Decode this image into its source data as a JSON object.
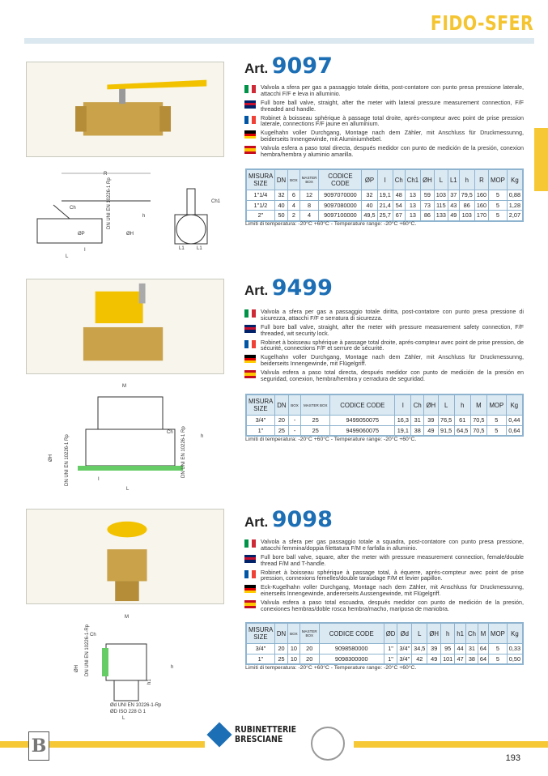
{
  "brand": "FIDO-SFER",
  "page_number": "193",
  "colors": {
    "yellow": "#f6c835",
    "blue": "#1d6fb5",
    "table_header": "#dbe9f3"
  },
  "flags": [
    "italy",
    "uk",
    "france",
    "germany",
    "spain"
  ],
  "footer": {
    "logo1": "B GROUP",
    "logo2_line1": "RUBINETTERIE",
    "logo2_line2": "BRESCIANE",
    "cert": "ISO 9001 · ISO 14001"
  },
  "sections": [
    {
      "art_prefix": "Art.",
      "art_number": "9097",
      "descriptions": [
        "Valvola a sfera per gas a passaggio totale diritta, post-contatore con punto presa pressione laterale, attacchi F/F e leva in alluminio.",
        "Full bore ball valve, straight, after the meter with lateral pressure measurement connection, F/F threaded and handle.",
        "Robinet à boisseau sphérique à passage total droite, aprés-compteur avec point de  prise pression laterale, connections F/F jaune en alluminium.",
        "Kugelhahn voller Durchgang, Montage nach dem Zähler, mit Anschluss für Druckmessunng, beiderseits Innengewinde, mit Aluminiumhebel.",
        "Valvula esfera a paso total directa, después medidor con punto de medición de la presión, conexion hembra/hembra y aluminio amarilla."
      ],
      "table": {
        "headers": [
          "MISURA SIZE",
          "DN",
          "BOX",
          "MASTER BOX",
          "CODICE CODE",
          "ØP",
          "I",
          "Ch",
          "Ch1",
          "ØH",
          "L",
          "L1",
          "h",
          "R",
          "MOP",
          "Kg"
        ],
        "rows": [
          [
            "1\"1/4",
            "32",
            "6",
            "12",
            "9097070000",
            "32",
            "19,1",
            "48",
            "13",
            "59",
            "103",
            "37",
            "79,5",
            "160",
            "5",
            "0,88"
          ],
          [
            "1\"1/2",
            "40",
            "4",
            "8",
            "9097080000",
            "40",
            "21,4",
            "54",
            "13",
            "73",
            "115",
            "43",
            "86",
            "160",
            "5",
            "1,28"
          ],
          [
            "2\"",
            "50",
            "2",
            "4",
            "9097100000",
            "49,5",
            "25,7",
            "67",
            "13",
            "86",
            "133",
            "49",
            "103",
            "170",
            "5",
            "2,07"
          ]
        ]
      },
      "temperature": "Limiti di temperatura: -20°C +60°C - Temperature range: -20°C +60°C.",
      "drawing_labels": [
        "R",
        "Ch",
        "h",
        "ØP",
        "ØH",
        "L",
        "I",
        "DN UNI EN 10226-1 Rp",
        "Ch1",
        "L1",
        "L1"
      ]
    },
    {
      "art_prefix": "Art.",
      "art_number": "9499",
      "descriptions": [
        "Valvola a sfera per gas a passaggio totale diritta, post-contatore con punto presa pressione di sicurezza, attacchi F/F e serratura di sicurezza.",
        "Full bore ball valve, straight, after the meter with pressure measurement safety connection, F/F threaded, wit security lock.",
        "Robinet à boisseau sphérique à passage total droite, aprés-compteur avec point de  prise pression, de sécurité, connections F/F et serrure de sécurité.",
        "Kugelhahn voller Durchgang, Montage nach dem Zähler, mit Anschluss für Druckmessunng, beiderseits Innengewinde, mit Flügelgriff.",
        "Valvula esfera a paso total directa, después medidor con punto de medición de la presión en seguridad, conexion, hembra/hembra y cerradura de seguridad."
      ],
      "table": {
        "headers": [
          "MISURA SIZE",
          "DN",
          "BOX",
          "MASTER BOX",
          "CODICE CODE",
          "I",
          "Ch",
          "ØH",
          "L",
          "h",
          "M",
          "MOP",
          "Kg"
        ],
        "rows": [
          [
            "3/4\"",
            "20",
            "-",
            "25",
            "9499050075",
            "16,3",
            "31",
            "39",
            "76,5",
            "61",
            "70,5",
            "5",
            "0,44"
          ],
          [
            "1\"",
            "25",
            "-",
            "25",
            "9499060075",
            "19,1",
            "38",
            "49",
            "91,5",
            "64,5",
            "70,5",
            "5",
            "0,64"
          ]
        ]
      },
      "temperature": "Limiti di temperatura: -20°C +60°C - Temperature range: -20°C +60°C.",
      "drawing_labels": [
        "M",
        "Ch",
        "h",
        "ØH",
        "DN UNI EN 10226-1 Rp",
        "I",
        "L",
        "DN UNI EN 10226-1 Rp"
      ]
    },
    {
      "art_prefix": "Art.",
      "art_number": "9098",
      "descriptions": [
        "Valvola a sfera per gas passaggio totale a squadra, post-contatore con punto presa pressione, attacchi femmina/doppia filettatura F/M e farfalla in alluminio.",
        "Full bore ball valve, square, after the meter with pressure measurement connection, female/double thread F/M and T-handle.",
        "Robinet à boisseau sphérique à passage total, à équerre, aprés-compteur avec point de prise pression, connexions femelles/double taraudage F/M et levier papillon.",
        "Eck-Kugelhahn voller Durchgang, Montage nach dem Zähler, mit Anschluss für  Druckmessunng, einerseits Innengewinde, andererseits Aussengewinde, mit Flügelgriff.",
        "Valvula esfera a paso total escuadra, después medidor con punto de medición de la presión, conexiones hembras/doble rosca hembra/macho, mariposa de maniobra."
      ],
      "table": {
        "headers": [
          "MISURA SIZE",
          "DN",
          "BOX",
          "MASTER BOX",
          "CODICE CODE",
          "ØD",
          "Ød",
          "L",
          "ØH",
          "h",
          "h1",
          "Ch",
          "M",
          "MOP",
          "Kg"
        ],
        "rows": [
          [
            "3/4\"",
            "20",
            "10",
            "20",
            "9098580000",
            "1\"",
            "3/4\"",
            "34,5",
            "39",
            "95",
            "44",
            "31",
            "64",
            "5",
            "0,33"
          ],
          [
            "1\"",
            "25",
            "10",
            "20",
            "9098300000",
            "1\"",
            "3/4\"",
            "42",
            "49",
            "101",
            "47",
            "38",
            "64",
            "5",
            "0,50"
          ]
        ]
      },
      "temperature": "Limiti di temperatura: -20°C +60°C - Temperature range: -20°C +60°C.",
      "drawing_labels": [
        "M",
        "Ch",
        "h",
        "ØH",
        "DN UNI EN 10226-1-Rp",
        "h1",
        "Ød UNI EN 10226-1-Rp",
        "ØD ISO 228 G 1",
        "L"
      ]
    }
  ]
}
